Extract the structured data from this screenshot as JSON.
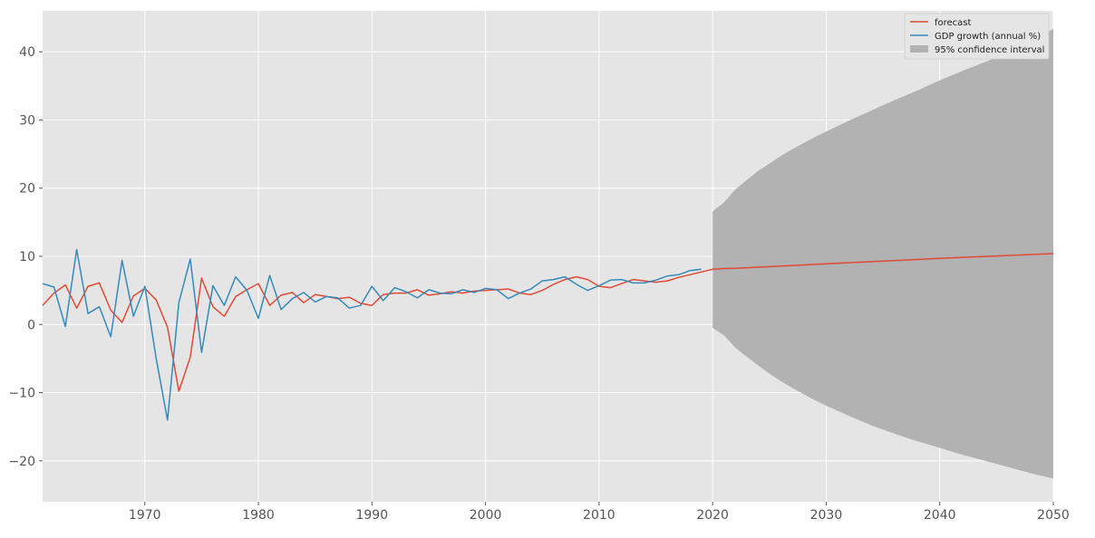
{
  "chart_data": {
    "type": "line",
    "title": "",
    "xlabel": "",
    "ylabel": "",
    "xlim": [
      1961,
      2050
    ],
    "ylim": [
      -26,
      46
    ],
    "x_ticks": [
      1970,
      1980,
      1990,
      2000,
      2010,
      2020,
      2030,
      2040,
      2050
    ],
    "y_ticks": [
      -20,
      -10,
      0,
      10,
      20,
      30,
      40
    ],
    "x_tick_labels": [
      "1970",
      "1980",
      "1990",
      "2000",
      "2010",
      "2020",
      "2030",
      "2040",
      "2050"
    ],
    "y_tick_labels": [
      "−20",
      "−10",
      "0",
      "10",
      "20",
      "30",
      "40"
    ],
    "grid": true,
    "legend_position": "top-right",
    "colors": {
      "background": "#e5e5e5",
      "grid": "#ffffff",
      "forecast": "#e24a33",
      "gdp": "#348abd",
      "ci": "#b2b2b2"
    },
    "series": [
      {
        "name": "forecast",
        "x": [
          1961,
          1962,
          1963,
          1964,
          1965,
          1966,
          1967,
          1968,
          1969,
          1970,
          1971,
          1972,
          1973,
          1974,
          1975,
          1976,
          1977,
          1978,
          1979,
          1980,
          1981,
          1982,
          1983,
          1984,
          1985,
          1986,
          1987,
          1988,
          1989,
          1990,
          1991,
          1992,
          1993,
          1994,
          1995,
          1996,
          1997,
          1998,
          1999,
          2000,
          2001,
          2002,
          2003,
          2004,
          2005,
          2006,
          2007,
          2008,
          2009,
          2010,
          2011,
          2012,
          2013,
          2014,
          2015,
          2016,
          2017,
          2018,
          2019,
          2020,
          2021,
          2022,
          2030,
          2040,
          2050
        ],
        "values": [
          2.8,
          4.6,
          5.8,
          2.4,
          5.6,
          6.1,
          2.1,
          0.3,
          4.2,
          5.3,
          3.6,
          -0.4,
          -9.8,
          -4.8,
          6.8,
          2.6,
          1.2,
          4.1,
          5.1,
          6.0,
          2.8,
          4.3,
          4.7,
          3.2,
          4.4,
          4.1,
          3.8,
          4.0,
          3.1,
          2.8,
          4.4,
          4.6,
          4.6,
          5.1,
          4.3,
          4.5,
          4.8,
          4.6,
          4.9,
          5.0,
          5.1,
          5.2,
          4.6,
          4.4,
          5.0,
          5.9,
          6.6,
          7.0,
          6.6,
          5.6,
          5.4,
          6.0,
          6.6,
          6.4,
          6.2,
          6.4,
          6.9,
          7.3,
          7.7,
          8.1,
          8.2,
          8.25,
          8.9,
          9.7,
          10.4
        ]
      },
      {
        "name": "GDP growth (annual %)",
        "x": [
          1961,
          1962,
          1963,
          1964,
          1965,
          1966,
          1967,
          1968,
          1969,
          1970,
          1971,
          1972,
          1973,
          1974,
          1975,
          1976,
          1977,
          1978,
          1979,
          1980,
          1981,
          1982,
          1983,
          1984,
          1985,
          1986,
          1987,
          1988,
          1989,
          1990,
          1991,
          1992,
          1993,
          1994,
          1995,
          1996,
          1997,
          1998,
          1999,
          2000,
          2001,
          2002,
          2003,
          2004,
          2005,
          2006,
          2007,
          2008,
          2009,
          2010,
          2011,
          2012,
          2013,
          2014,
          2015,
          2016,
          2017,
          2018,
          2019
        ],
        "values": [
          6.0,
          5.5,
          -0.3,
          11.0,
          1.6,
          2.6,
          -1.8,
          9.4,
          1.2,
          5.6,
          -5.0,
          -14.0,
          3.2,
          9.6,
          -4.1,
          5.7,
          2.8,
          7.0,
          5.0,
          0.9,
          7.2,
          2.2,
          3.8,
          4.7,
          3.3,
          4.1,
          3.9,
          2.4,
          2.8,
          5.6,
          3.5,
          5.4,
          4.8,
          3.9,
          5.1,
          4.6,
          4.5,
          5.1,
          4.7,
          5.3,
          5.1,
          3.8,
          4.6,
          5.2,
          6.4,
          6.6,
          7.0,
          5.9,
          5.0,
          5.7,
          6.5,
          6.6,
          6.1,
          6.1,
          6.5,
          7.1,
          7.3,
          7.9,
          8.1
        ]
      }
    ],
    "confidence_interval": {
      "name": "95% confidence interval",
      "x": [
        2020,
        2021,
        2022,
        2023,
        2024,
        2025,
        2026,
        2027,
        2028,
        2029,
        2030,
        2032,
        2034,
        2036,
        2038,
        2040,
        2042,
        2044,
        2046,
        2048,
        2050
      ],
      "lower": [
        -0.5,
        -1.6,
        -3.4,
        -4.7,
        -6.0,
        -7.2,
        -8.3,
        -9.3,
        -10.2,
        -11.1,
        -11.9,
        -13.4,
        -14.8,
        -16.0,
        -17.1,
        -18.1,
        -19.1,
        -20.0,
        -20.9,
        -21.8,
        -22.6
      ],
      "upper": [
        16.6,
        17.9,
        19.8,
        21.2,
        22.5,
        23.6,
        24.7,
        25.7,
        26.6,
        27.5,
        28.3,
        29.9,
        31.4,
        32.9,
        34.3,
        35.8,
        37.2,
        38.5,
        39.9,
        41.3,
        43.4
      ]
    }
  }
}
